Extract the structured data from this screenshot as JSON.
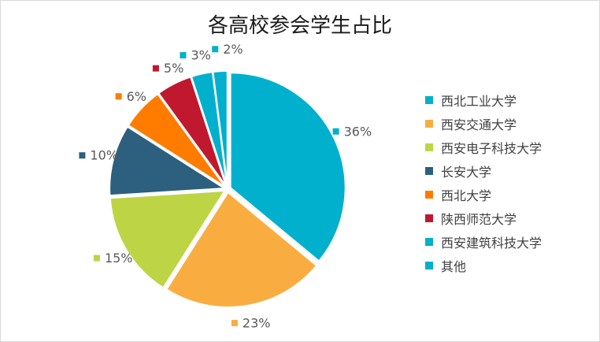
{
  "chart_data": {
    "type": "pie",
    "title": "各高校参会学生占比",
    "categories": [
      "西北工业大学",
      "西安交通大学",
      "西安电子科技大学",
      "长安大学",
      "西北大学",
      "陕西师范大学",
      "西安建筑科技大学",
      "其他"
    ],
    "values": [
      36,
      23,
      15,
      10,
      6,
      5,
      3,
      2
    ],
    "value_labels": [
      "36%",
      "23%",
      "15%",
      "10%",
      "6%",
      "5%",
      "3%",
      "2%"
    ],
    "colors": [
      "#00b0cc",
      "#f9ad41",
      "#bdd445",
      "#2d5f7e",
      "#ff7c00",
      "#c0182f",
      "#00b0cc",
      "#00b0cc"
    ],
    "legend_position": "right",
    "exploded": true
  }
}
